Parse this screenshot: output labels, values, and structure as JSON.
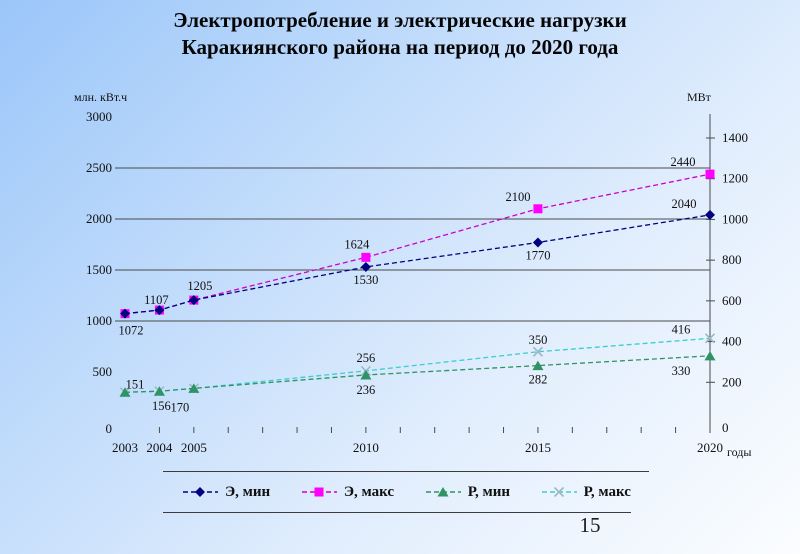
{
  "slide": {
    "title_line1": "Электропотребление и электрические нагрузки",
    "title_line2": "Каракиянского района на период до 2020 года",
    "page_number": "15"
  },
  "chart_data": {
    "type": "line",
    "x": [
      2003,
      2004,
      2005,
      2010,
      2015,
      2020
    ],
    "x_labeled_years": [
      2003,
      2004,
      2005,
      2010,
      2015,
      2020
    ],
    "x_axis_label": "годы",
    "left_axis": {
      "label": "млн. кВт.ч",
      "ticks": [
        0,
        500,
        1000,
        1500,
        2000,
        2500,
        3000
      ],
      "range": [
        0,
        3000
      ]
    },
    "right_axis": {
      "label": "МВт",
      "ticks": [
        0,
        200,
        400,
        600,
        800,
        1000,
        1200,
        1400
      ],
      "range": [
        0,
        1400
      ]
    },
    "gridlines_left_values": [
      1000,
      1500,
      2000,
      2500
    ],
    "grid": true,
    "legend_position": "bottom",
    "series": [
      {
        "name": "Э, мин",
        "axis": "left",
        "marker": "diamond",
        "line_color": "#000080",
        "marker_color": "#000080",
        "values": [
          1072,
          1107,
          1205,
          1530,
          1770,
          2040
        ],
        "labels": [
          "1072",
          "1107",
          "",
          "1530",
          "1770",
          "2040"
        ]
      },
      {
        "name": "Э, макс",
        "axis": "left",
        "marker": "square",
        "line_color": "#cc00cc",
        "marker_color": "#ff00ff",
        "values": [
          1072,
          1107,
          1205,
          1624,
          2100,
          2440
        ],
        "labels": [
          "",
          "",
          "1205",
          "1624",
          "2100",
          "2440"
        ]
      },
      {
        "name": "Р, мин",
        "axis": "right",
        "marker": "triangle",
        "line_color": "#2e9465",
        "marker_color": "#2e9465",
        "values": [
          151,
          156,
          170,
          236,
          282,
          330
        ],
        "labels": [
          "151",
          "156",
          "",
          "236",
          "282",
          "330"
        ]
      },
      {
        "name": "Р, макс",
        "axis": "right",
        "marker": "x",
        "line_color": "#3bcfcf",
        "marker_color": "#9cb9c4",
        "values": [
          151,
          156,
          170,
          256,
          350,
          416
        ],
        "labels": [
          "",
          "",
          "170",
          "256",
          "350",
          "416"
        ]
      }
    ]
  }
}
